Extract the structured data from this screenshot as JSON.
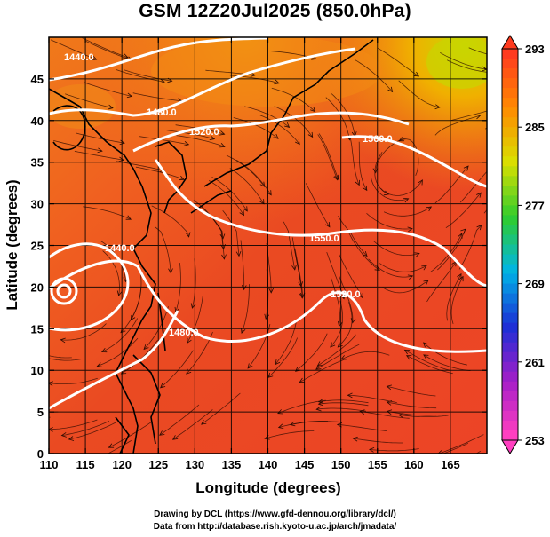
{
  "title": "GSM 12Z20Jul2025 (850.0hPa)",
  "x_axis": {
    "label": "Longitude (degrees)",
    "ticks": [
      "110",
      "115",
      "120",
      "125",
      "130",
      "135",
      "140",
      "145",
      "150",
      "155",
      "160",
      "165"
    ]
  },
  "y_axis": {
    "label": "Latitude  (degrees)",
    "ticks": [
      "0",
      "5",
      "10",
      "15",
      "20",
      "25",
      "30",
      "35",
      "40",
      "45"
    ]
  },
  "colorbar": {
    "labels": [
      "293",
      "285",
      "277",
      "269",
      "261",
      "253"
    ],
    "colors": [
      "#ff3a1e",
      "#ff8a00",
      "#d9e000",
      "#2ecc2e",
      "#00b4e6",
      "#1b2fd6",
      "#a41ec8",
      "#ff3fc0"
    ]
  },
  "contour_labels": [
    "1440.0",
    "1480.0",
    "1520.0",
    "1560.0",
    "1550.0",
    "1520.0",
    "1440.0",
    "1480.0"
  ],
  "credits": {
    "line1": "Drawing by DCL (https://www.gfd-dennou.org/library/dcl/)",
    "line2": "Data from http://database.rish.kyoto-u.ac.jp/arch/jmadata/"
  }
}
